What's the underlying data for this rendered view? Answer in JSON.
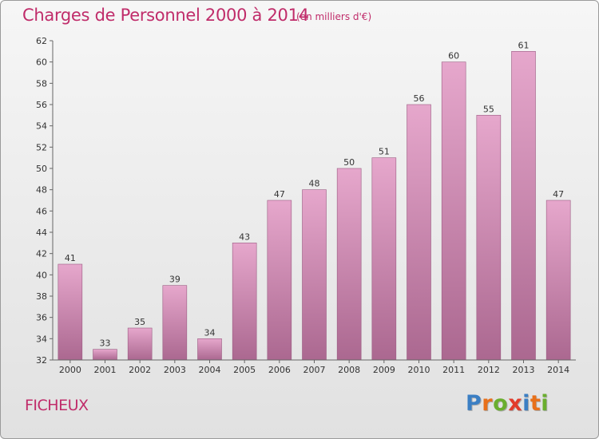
{
  "title": "Charges de Personnel 2000 à 2014",
  "unit_note": "(en milliers d'€)",
  "commune": "FICHEUX",
  "logo": {
    "text": "Proxiti",
    "letter_colors": [
      "#3b7fc4",
      "#e8701a",
      "#6aae2e",
      "#e23b2b",
      "#3b7fc4",
      "#e8701a",
      "#6aae2e"
    ]
  },
  "colors": {
    "title": "#c02c6a",
    "bar": "#d088b0",
    "axis_text": "#333333"
  },
  "chart_data": {
    "type": "bar",
    "categories": [
      "2000",
      "2001",
      "2002",
      "2003",
      "2004",
      "2005",
      "2006",
      "2007",
      "2008",
      "2009",
      "2010",
      "2011",
      "2012",
      "2013",
      "2014"
    ],
    "values": [
      41,
      33,
      35,
      39,
      34,
      43,
      47,
      48,
      50,
      51,
      56,
      60,
      55,
      61,
      47
    ],
    "title": "Charges de Personnel 2000 à 2014",
    "xlabel": "",
    "ylabel": "",
    "ylim": [
      32,
      62
    ],
    "yticks": [
      32,
      34,
      36,
      38,
      40,
      42,
      44,
      46,
      48,
      50,
      52,
      54,
      56,
      58,
      60,
      62
    ],
    "grid": false,
    "data_labels": true
  }
}
